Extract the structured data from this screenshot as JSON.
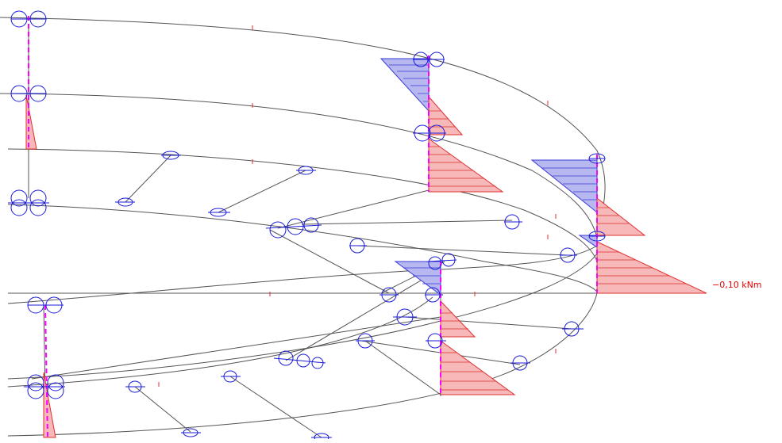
{
  "diagram": {
    "result_label": "−0,10 kNm",
    "colors": {
      "frame_line": "#555555",
      "negative_fill": "#b8b8f0",
      "negative_stroke": "#3a3ad8",
      "positive_fill": "#f6b8b8",
      "positive_stroke": "#e03030",
      "member_axis": "#ff00ff",
      "node_symbol": "#1a1ad8",
      "label": "#e60000"
    }
  }
}
